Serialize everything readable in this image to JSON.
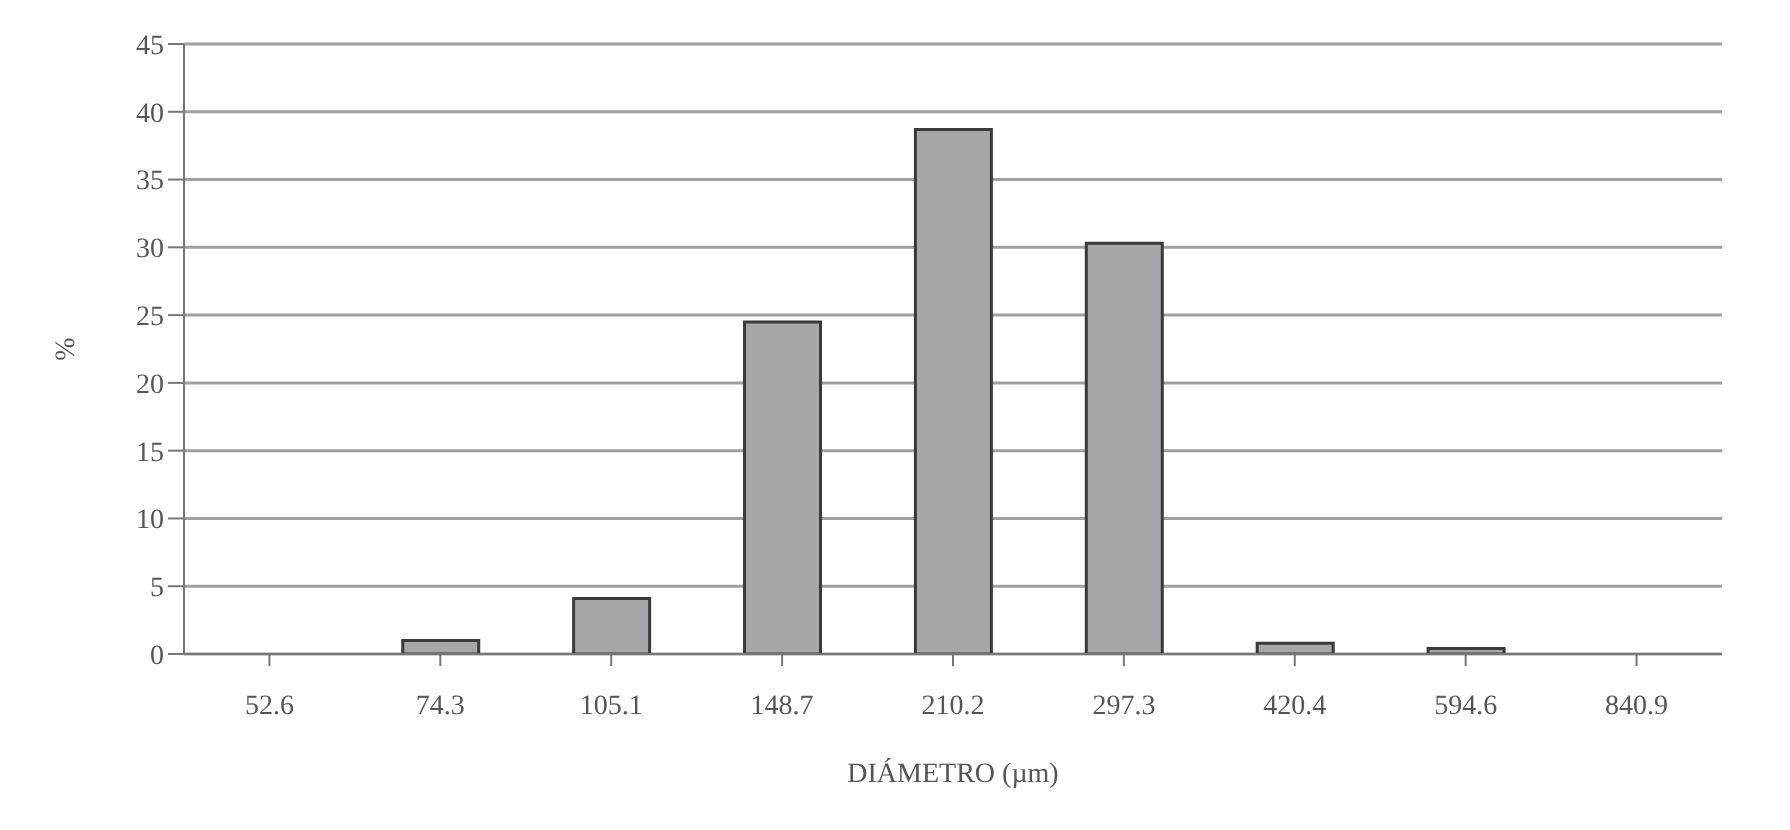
{
  "chart_data": {
    "type": "bar",
    "xlabel": "DIÁMETRO (µm)",
    "ylabel": "%",
    "categories": [
      "52.6",
      "74.3",
      "105.1",
      "148.7",
      "210.2",
      "297.3",
      "420.4",
      "594.6",
      "840.9"
    ],
    "values": [
      0,
      1.0,
      4.1,
      24.5,
      38.7,
      30.3,
      0.8,
      0.4,
      0
    ],
    "color": "#a7a7a9",
    "ylim": [
      0,
      45
    ],
    "yticks": [
      0,
      5,
      10,
      15,
      20,
      25,
      30,
      35,
      40,
      45
    ],
    "grid": "y"
  }
}
